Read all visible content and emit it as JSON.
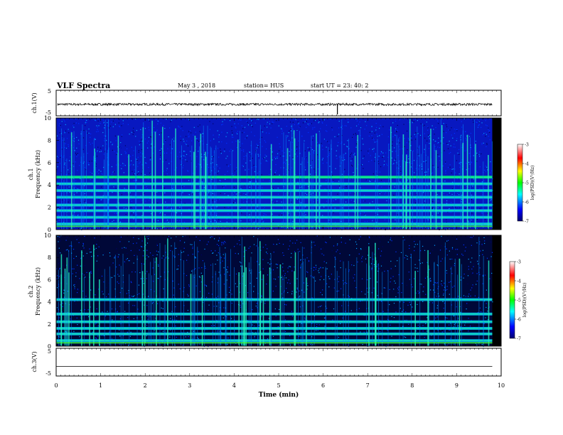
{
  "header": {
    "title": "VLF Spectra",
    "date": "May 3 , 2018",
    "station": "station= HUS",
    "start": "start UT = 23: 40: 2"
  },
  "chart_data": [
    {
      "type": "line",
      "ylabel": "ch.1(V)",
      "ylim": [
        -5,
        5
      ],
      "yticks": [
        "5",
        "-5"
      ],
      "description_value": -0.5,
      "spike_at_min": 6.32
    },
    {
      "type": "heatmap",
      "ylabel_top": "ch.1",
      "ylabel": "Frequency (kHz)",
      "ylim": [
        0,
        10
      ],
      "yticks": [
        "0",
        "2",
        "4",
        "6",
        "8",
        "10"
      ],
      "bands_khz": [
        0.5,
        1.1,
        1.7,
        2.2,
        2.9,
        3.5,
        4.1,
        4.7
      ],
      "colorbar": {
        "label": "log(PSD)(V²/Hz)",
        "ticks": [
          "-3",
          "-4",
          "-5",
          "-6",
          "-7"
        ]
      }
    },
    {
      "type": "heatmap",
      "ylabel_top": "ch.2",
      "ylabel": "Frequency (kHz)",
      "ylim": [
        0,
        10
      ],
      "yticks": [
        "0",
        "2",
        "4",
        "6",
        "8",
        "10"
      ],
      "bands_khz": [
        0.5,
        1.1,
        1.6,
        2.2,
        2.9,
        4.2
      ],
      "colorbar": {
        "label": "log(PSD)(V²/Hz)",
        "ticks": [
          "-3",
          "-4",
          "-5",
          "-6",
          "-7"
        ]
      }
    },
    {
      "type": "line",
      "ylabel": "ch.3(V)",
      "ylim": [
        -5,
        5
      ],
      "yticks": [
        "5",
        "-5"
      ],
      "value": -1.5
    }
  ],
  "xaxis": {
    "label": "Time (min)",
    "xlim": [
      0,
      10
    ],
    "ticks": [
      "0",
      "1",
      "2",
      "3",
      "4",
      "5",
      "6",
      "7",
      "8",
      "9",
      "10"
    ]
  }
}
